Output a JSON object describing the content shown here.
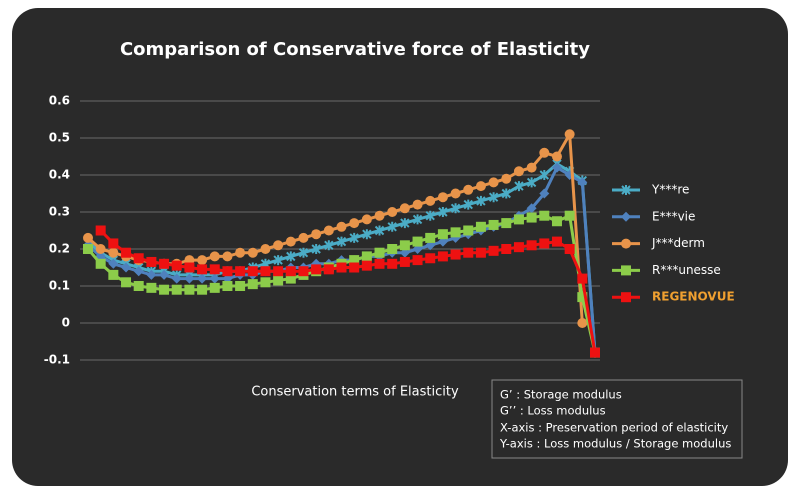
{
  "chart_data": {
    "type": "line",
    "title": "Comparison of Conservative force of Elasticity",
    "xlabel": "Conservation terms of Elasticity",
    "annotations": [
      "G’ : Storage modulus",
      "G’’ : Loss modulus",
      "X-axis : Preservation period of elasticity",
      "Y-axis : Loss modulus / Storage modulus"
    ],
    "ylim": [
      -0.1,
      0.6
    ],
    "yticks": [
      0.6,
      0.5,
      0.4,
      0.3,
      0.2,
      0.1,
      0,
      -0.1
    ],
    "grid": true,
    "legend": "right",
    "series": [
      {
        "name": "Y***re",
        "color": "#4bacc6",
        "marker": "star",
        "values": [
          0.22,
          0.19,
          0.17,
          0.16,
          0.15,
          0.14,
          0.14,
          0.13,
          0.13,
          0.13,
          0.13,
          0.14,
          0.14,
          0.15,
          0.16,
          0.17,
          0.18,
          0.19,
          0.2,
          0.21,
          0.22,
          0.23,
          0.24,
          0.25,
          0.26,
          0.27,
          0.28,
          0.29,
          0.3,
          0.31,
          0.32,
          0.33,
          0.34,
          0.35,
          0.37,
          0.38,
          0.4,
          0.43,
          0.41,
          0.385,
          -0.08
        ]
      },
      {
        "name": "E***vie",
        "color": "#4f81bd",
        "marker": "diamond",
        "values": [
          0.21,
          0.18,
          0.16,
          0.15,
          0.14,
          0.13,
          0.13,
          0.12,
          0.12,
          0.12,
          0.12,
          0.12,
          0.13,
          0.13,
          0.14,
          0.14,
          0.15,
          0.15,
          0.16,
          0.16,
          0.17,
          0.17,
          0.18,
          0.18,
          0.19,
          0.19,
          0.2,
          0.21,
          0.22,
          0.23,
          0.24,
          0.25,
          0.26,
          0.27,
          0.29,
          0.31,
          0.35,
          0.42,
          0.4,
          0.38,
          -0.08
        ]
      },
      {
        "name": "J***derm",
        "color": "#e8944a",
        "marker": "circle",
        "values": [
          0.23,
          0.2,
          0.19,
          0.18,
          0.17,
          0.165,
          0.16,
          0.16,
          0.17,
          0.17,
          0.18,
          0.18,
          0.19,
          0.19,
          0.2,
          0.21,
          0.22,
          0.23,
          0.24,
          0.25,
          0.26,
          0.27,
          0.28,
          0.29,
          0.3,
          0.31,
          0.32,
          0.33,
          0.34,
          0.35,
          0.36,
          0.37,
          0.38,
          0.39,
          0.41,
          0.42,
          0.46,
          0.45,
          0.51,
          0.0,
          null
        ]
      },
      {
        "name": "R***unesse",
        "color": "#8ccc4a",
        "marker": "square",
        "values": [
          0.2,
          0.16,
          0.13,
          0.11,
          0.1,
          0.095,
          0.09,
          0.09,
          0.09,
          0.09,
          0.095,
          0.1,
          0.1,
          0.105,
          0.11,
          0.115,
          0.12,
          0.13,
          0.14,
          0.15,
          0.16,
          0.17,
          0.18,
          0.19,
          0.2,
          0.21,
          0.22,
          0.23,
          0.24,
          0.245,
          0.25,
          0.26,
          0.265,
          0.27,
          0.28,
          0.285,
          0.29,
          0.275,
          0.29,
          0.07,
          -0.08
        ]
      },
      {
        "name": "REGENOVUE",
        "color": "#ee1111",
        "marker": "square",
        "label_color": "#f0a030",
        "values": [
          null,
          0.25,
          0.215,
          0.19,
          0.175,
          0.165,
          0.16,
          0.155,
          0.15,
          0.145,
          0.145,
          0.14,
          0.14,
          0.14,
          0.14,
          0.14,
          0.14,
          0.14,
          0.145,
          0.145,
          0.15,
          0.15,
          0.155,
          0.16,
          0.16,
          0.165,
          0.17,
          0.175,
          0.18,
          0.185,
          0.19,
          0.19,
          0.195,
          0.2,
          0.205,
          0.21,
          0.215,
          0.22,
          0.2,
          0.12,
          -0.08
        ]
      }
    ]
  }
}
